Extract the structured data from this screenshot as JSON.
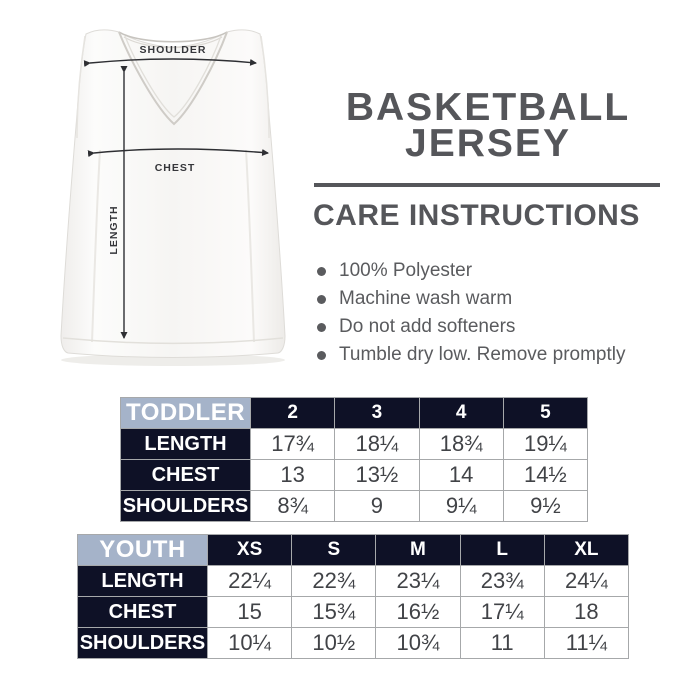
{
  "jersey_diagram": {
    "shoulder_label": "SHOULDER",
    "chest_label": "CHEST",
    "length_label": "LENGTH"
  },
  "header": {
    "title_line1": "BASKETBALL",
    "title_line2": "JERSEY",
    "care_title": "CARE INSTRUCTIONS",
    "care_items": [
      "100% Polyester",
      "Machine wash warm",
      "Do not add softeners",
      "Tumble dry low. Remove promptly"
    ]
  },
  "colors": {
    "heading_text": "#55565a",
    "body_text": "#5a5b5e",
    "table_dark_navy": "#0e1126",
    "table_light_blue": "#a5b3c9",
    "table_value_text": "#414347",
    "table_border": "#a6a8aa",
    "annotation_arrow": "#2e2f33"
  },
  "tables": [
    {
      "name": "TODDLER",
      "columns": [
        "2",
        "3",
        "4",
        "5"
      ],
      "rows": [
        {
          "label": "LENGTH",
          "values": [
            "17¾",
            "18¼",
            "18¾",
            "19¼"
          ]
        },
        {
          "label": "CHEST",
          "values": [
            "13",
            "13½",
            "14",
            "14½"
          ]
        },
        {
          "label": "SHOULDERS",
          "values": [
            "8¾",
            "9",
            "9¼",
            "9½"
          ]
        }
      ]
    },
    {
      "name": "YOUTH",
      "columns": [
        "XS",
        "S",
        "M",
        "L",
        "XL"
      ],
      "rows": [
        {
          "label": "LENGTH",
          "values": [
            "22¼",
            "22¾",
            "23¼",
            "23¾",
            "24¼"
          ]
        },
        {
          "label": "CHEST",
          "values": [
            "15",
            "15¾",
            "16½",
            "17¼",
            "18"
          ]
        },
        {
          "label": "SHOULDERS",
          "values": [
            "10¼",
            "10½",
            "10¾",
            "11",
            "11¼"
          ]
        }
      ]
    }
  ]
}
